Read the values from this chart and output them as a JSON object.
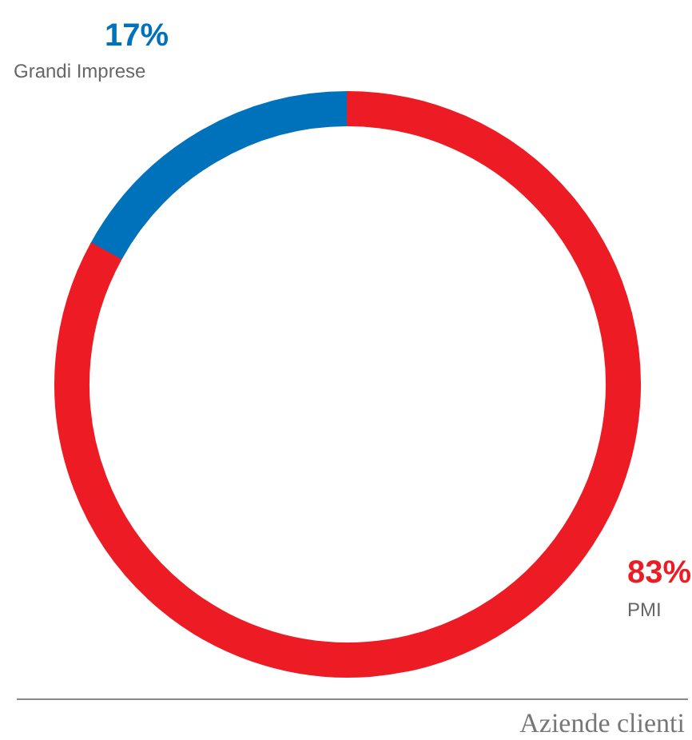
{
  "chart_data": {
    "type": "donut",
    "categories": [
      "Grandi Imprese",
      "PMI"
    ],
    "values": [
      17,
      83
    ],
    "colors": [
      "#0072bc",
      "#ed1c24"
    ],
    "value_labels": [
      "17%",
      "83%"
    ],
    "annotations": [
      "Aziende clienti"
    ]
  }
}
